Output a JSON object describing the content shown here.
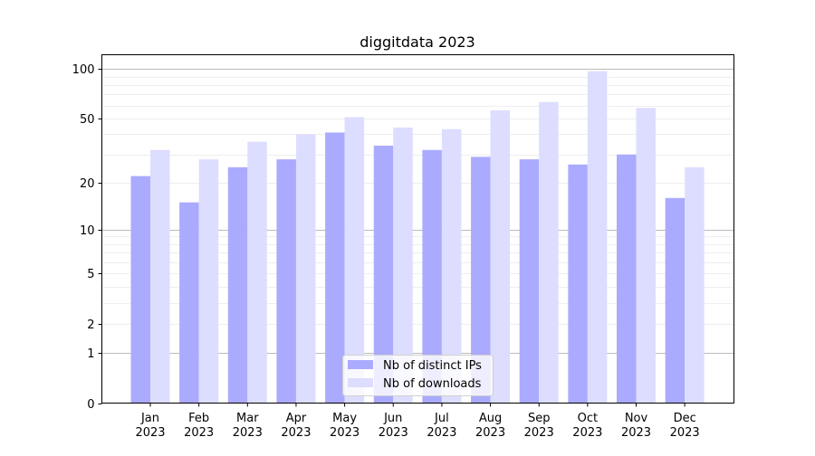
{
  "chart_data": {
    "type": "bar",
    "title": "diggitdata 2023",
    "xlabel": "",
    "ylabel": "",
    "yscale": "log1p",
    "ylim": [
      0,
      122
    ],
    "yticks": [
      0,
      1,
      2,
      5,
      10,
      20,
      50,
      100
    ],
    "ytick_labels": [
      "0",
      "1",
      "2",
      "5",
      "10",
      "20",
      "50",
      "100"
    ],
    "grid": true,
    "legend_position": "lower center",
    "categories": [
      "Jan\n2023",
      "Feb\n2023",
      "Mar\n2023",
      "Apr\n2023",
      "May\n2023",
      "Jun\n2023",
      "Jul\n2023",
      "Aug\n2023",
      "Sep\n2023",
      "Oct\n2023",
      "Nov\n2023",
      "Dec\n2023"
    ],
    "series": [
      {
        "name": "Nb of distinct IPs",
        "color": "#aaaaff",
        "values": [
          22,
          15,
          25,
          28,
          41,
          34,
          32,
          29,
          28,
          26,
          30,
          16
        ]
      },
      {
        "name": "Nb of downloads",
        "color": "#ddddff",
        "values": [
          32,
          28,
          36,
          40,
          51,
          44,
          43,
          56,
          63,
          97,
          58,
          25
        ]
      }
    ]
  }
}
